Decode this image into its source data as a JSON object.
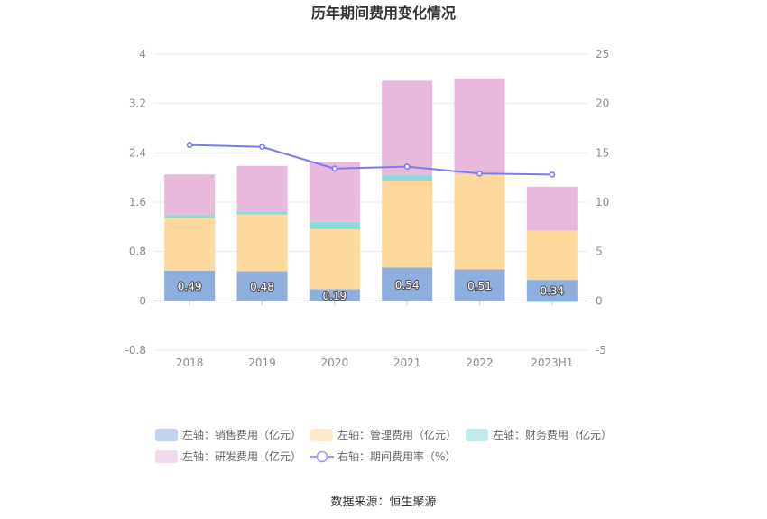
{
  "chart_data": {
    "type": "bar",
    "stacked": true,
    "title": "历年期间费用变化情况",
    "categories": [
      "2018",
      "2019",
      "2020",
      "2021",
      "2022",
      "2023H1"
    ],
    "left_axis": {
      "ylim": [
        -0.8,
        4
      ],
      "ticks": [
        "-0.8",
        "0",
        "0.8",
        "1.6",
        "2.4",
        "3.2",
        "4"
      ]
    },
    "right_axis": {
      "ylim": [
        -5,
        25
      ],
      "ticks": [
        "-5",
        "0",
        "5",
        "10",
        "15",
        "20",
        "25"
      ]
    },
    "grid": true,
    "legend_position": "bottom",
    "series": [
      {
        "name": "左轴：销售费用（亿元）",
        "axis": "left",
        "color": "#8eaedd",
        "values": [
          0.49,
          0.48,
          0.19,
          0.54,
          0.51,
          0.34
        ],
        "labels": [
          "0.49",
          "0.48",
          "0.19",
          "0.54",
          "0.51",
          "0.34"
        ]
      },
      {
        "name": "左轴：管理费用（亿元）",
        "axis": "left",
        "color": "#fdd99d",
        "values": [
          0.85,
          0.92,
          0.97,
          1.41,
          1.55,
          0.8
        ]
      },
      {
        "name": "左轴：财务费用（亿元）",
        "axis": "left",
        "color": "#8fd8db",
        "values": [
          0.05,
          0.05,
          0.12,
          0.09,
          0.0,
          -0.02
        ]
      },
      {
        "name": "左轴：研发费用（亿元）",
        "axis": "left",
        "color": "#e8b9da",
        "values": [
          0.66,
          0.74,
          0.97,
          1.53,
          1.55,
          0.71
        ]
      },
      {
        "name": "右轴：期间费用率（%）",
        "axis": "right",
        "type": "line",
        "color": "#7b7bf0",
        "values": [
          15.8,
          15.6,
          13.4,
          13.6,
          12.9,
          12.8
        ]
      }
    ],
    "source": "数据来源：恒生聚源"
  }
}
